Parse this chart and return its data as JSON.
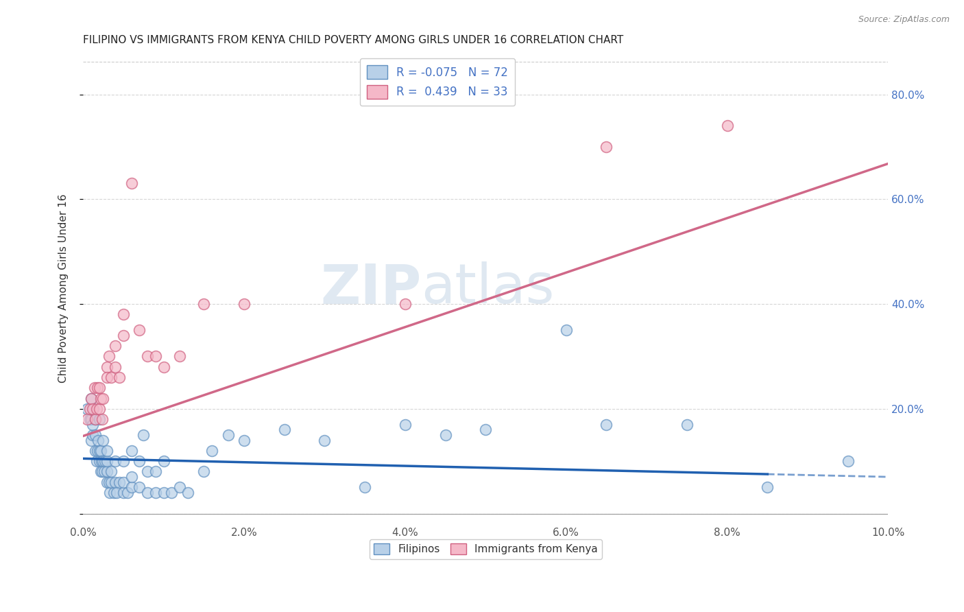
{
  "title": "FILIPINO VS IMMIGRANTS FROM KENYA CHILD POVERTY AMONG GIRLS UNDER 16 CORRELATION CHART",
  "source": "Source: ZipAtlas.com",
  "ylabel": "Child Poverty Among Girls Under 16",
  "xlim": [
    0.0,
    0.1
  ],
  "ylim": [
    -0.02,
    0.88
  ],
  "xticks": [
    0.0,
    0.02,
    0.04,
    0.06,
    0.08,
    0.1
  ],
  "yticks": [
    0.0,
    0.2,
    0.4,
    0.6,
    0.8
  ],
  "ytick_labels": [
    "",
    "20.0%",
    "40.0%",
    "60.0%",
    "80.0%"
  ],
  "xtick_labels": [
    "0.0%",
    "2.0%",
    "4.0%",
    "6.0%",
    "8.0%",
    "10.0%"
  ],
  "filipino_R": -0.075,
  "filipino_N": 72,
  "kenya_R": 0.439,
  "kenya_N": 33,
  "filipino_color": "#b8d0e8",
  "kenya_color": "#f5b8c8",
  "filipino_edge_color": "#6090c0",
  "kenya_edge_color": "#d06080",
  "filipino_line_color": "#2060b0",
  "kenya_line_color": "#d06888",
  "watermark_zip": "ZIP",
  "watermark_atlas": "atlas",
  "filipino_x": [
    0.0005,
    0.0008,
    0.001,
    0.001,
    0.001,
    0.0012,
    0.0012,
    0.0013,
    0.0015,
    0.0015,
    0.0015,
    0.0017,
    0.0018,
    0.0019,
    0.002,
    0.002,
    0.002,
    0.0022,
    0.0022,
    0.0023,
    0.0024,
    0.0025,
    0.0025,
    0.0026,
    0.0027,
    0.003,
    0.003,
    0.003,
    0.003,
    0.0032,
    0.0033,
    0.0035,
    0.0035,
    0.0038,
    0.004,
    0.004,
    0.0042,
    0.0045,
    0.005,
    0.005,
    0.005,
    0.0055,
    0.006,
    0.006,
    0.006,
    0.007,
    0.007,
    0.0075,
    0.008,
    0.008,
    0.009,
    0.009,
    0.01,
    0.01,
    0.011,
    0.012,
    0.013,
    0.015,
    0.016,
    0.018,
    0.02,
    0.025,
    0.03,
    0.035,
    0.04,
    0.045,
    0.05,
    0.06,
    0.065,
    0.075,
    0.085,
    0.095
  ],
  "filipino_y": [
    0.2,
    0.18,
    0.14,
    0.18,
    0.22,
    0.15,
    0.17,
    0.2,
    0.12,
    0.15,
    0.18,
    0.1,
    0.12,
    0.14,
    0.1,
    0.12,
    0.18,
    0.08,
    0.12,
    0.1,
    0.08,
    0.1,
    0.14,
    0.08,
    0.1,
    0.06,
    0.08,
    0.1,
    0.12,
    0.06,
    0.04,
    0.06,
    0.08,
    0.04,
    0.06,
    0.1,
    0.04,
    0.06,
    0.04,
    0.06,
    0.1,
    0.04,
    0.05,
    0.07,
    0.12,
    0.05,
    0.1,
    0.15,
    0.04,
    0.08,
    0.04,
    0.08,
    0.04,
    0.1,
    0.04,
    0.05,
    0.04,
    0.08,
    0.12,
    0.15,
    0.14,
    0.16,
    0.14,
    0.05,
    0.17,
    0.15,
    0.16,
    0.35,
    0.17,
    0.17,
    0.05,
    0.1
  ],
  "kenya_x": [
    0.0005,
    0.0008,
    0.001,
    0.0012,
    0.0014,
    0.0015,
    0.0017,
    0.0018,
    0.002,
    0.002,
    0.0022,
    0.0024,
    0.0025,
    0.003,
    0.003,
    0.0032,
    0.0035,
    0.004,
    0.004,
    0.0045,
    0.005,
    0.005,
    0.006,
    0.007,
    0.008,
    0.009,
    0.01,
    0.012,
    0.015,
    0.02,
    0.04,
    0.065,
    0.08
  ],
  "kenya_y": [
    0.18,
    0.2,
    0.22,
    0.2,
    0.24,
    0.18,
    0.2,
    0.24,
    0.2,
    0.24,
    0.22,
    0.18,
    0.22,
    0.28,
    0.26,
    0.3,
    0.26,
    0.28,
    0.32,
    0.26,
    0.34,
    0.38,
    0.63,
    0.35,
    0.3,
    0.3,
    0.28,
    0.3,
    0.4,
    0.4,
    0.4,
    0.7,
    0.74
  ],
  "kenya_line_intercept": 0.148,
  "kenya_line_slope": 5.2,
  "filipino_line_intercept": 0.105,
  "filipino_line_slope": -0.35
}
